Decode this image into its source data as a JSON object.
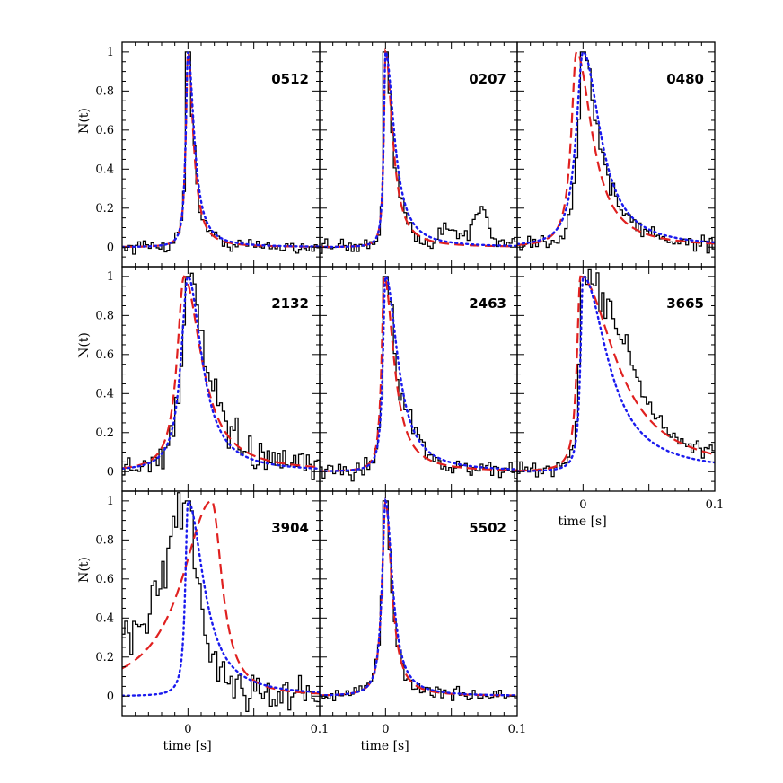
{
  "chart_data": {
    "type": "line",
    "layout": "3x3 panel grid (8 panels), shared axes",
    "ylabel": "N(t)",
    "xlabel": "time [s]",
    "xlim": [
      -0.05,
      0.1
    ],
    "ylim": [
      -0.1,
      1.05
    ],
    "x_ticks": [
      "0",
      "0.1"
    ],
    "y_ticks": [
      "0",
      "0.2",
      "0.4",
      "0.6",
      "0.8",
      "1"
    ],
    "colors": {
      "data": "#000000",
      "model_dashed": "#e0201f",
      "model_dotted": "#1a1aee"
    },
    "panels": [
      {
        "label": "0512",
        "peak_time": 0.0,
        "dashed_peak_time": 0.0,
        "rise": 0.0025,
        "decay": 0.006,
        "dotted_rise": 0.0025,
        "dotted_decay": 0.007,
        "noise": 0.035,
        "bumps": []
      },
      {
        "label": "0207",
        "peak_time": 0.0,
        "dashed_peak_time": 0.0,
        "rise": 0.002,
        "decay": 0.008,
        "dotted_rise": 0.002,
        "dotted_decay": 0.01,
        "noise": 0.04,
        "bumps": [
          [
            0.072,
            0.008,
            0.18
          ],
          [
            0.05,
            0.01,
            0.08
          ]
        ]
      },
      {
        "label": "0480",
        "peak_time": 0.0,
        "dashed_peak_time": -0.005,
        "rise": 0.006,
        "decay": 0.018,
        "dotted_rise": 0.008,
        "dotted_decay": 0.02,
        "noise": 0.045,
        "bumps": []
      },
      {
        "label": "2132",
        "peak_time": 0.0,
        "dashed_peak_time": -0.003,
        "rise": 0.008,
        "decay": 0.02,
        "dotted_rise": 0.008,
        "dotted_decay": 0.016,
        "noise": 0.07,
        "bumps": []
      },
      {
        "label": "2463",
        "peak_time": 0.0,
        "dashed_peak_time": -0.001,
        "rise": 0.003,
        "decay": 0.011,
        "dotted_rise": 0.003,
        "dotted_decay": 0.014,
        "noise": 0.045,
        "bumps": [
          [
            0.02,
            0.01,
            0.12
          ]
        ]
      },
      {
        "label": "3665",
        "peak_time": 0.0,
        "dashed_peak_time": -0.002,
        "rise": 0.004,
        "decay": 0.04,
        "dotted_rise": 0.003,
        "dotted_decay": 0.028,
        "noise": 0.04,
        "bumps": [
          [
            0.03,
            0.018,
            0.18
          ]
        ]
      },
      {
        "label": "3904",
        "peak_time": 0.0,
        "dashed_peak_time": 0.018,
        "rise": 0.035,
        "decay": 0.012,
        "dotted_rise": 0.003,
        "dotted_decay": 0.018,
        "noise": 0.09,
        "bumps": []
      },
      {
        "label": "5502",
        "peak_time": 0.0,
        "dashed_peak_time": 0.0,
        "rise": 0.004,
        "decay": 0.007,
        "dotted_rise": 0.004,
        "dotted_decay": 0.008,
        "noise": 0.03,
        "bumps": []
      }
    ]
  }
}
